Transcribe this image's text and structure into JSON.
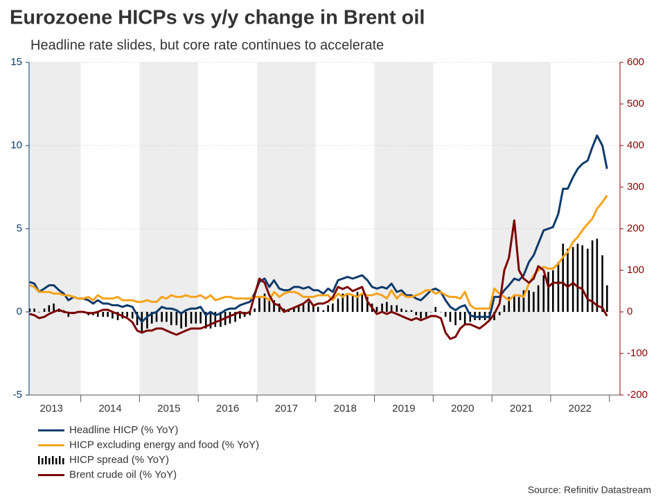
{
  "chart_data": {
    "type": "combo",
    "title": "Eurozoene HICPs vs y/y change in Brent oil",
    "subtitle": "Headline rate slides, but core rate continues to accelerate",
    "source": "Source: Refinitiv Datastream",
    "xlim": [
      2013.12,
      2023.18
    ],
    "xticks": [
      {
        "value": 2013.5,
        "label": "2013"
      },
      {
        "value": 2014.5,
        "label": "2014"
      },
      {
        "value": 2015.5,
        "label": "2015"
      },
      {
        "value": 2016.5,
        "label": "2016"
      },
      {
        "value": 2017.5,
        "label": "2017"
      },
      {
        "value": 2018.5,
        "label": "2018"
      },
      {
        "value": 2019.5,
        "label": "2019"
      },
      {
        "value": 2020.5,
        "label": "2020"
      },
      {
        "value": 2021.5,
        "label": "2021"
      },
      {
        "value": 2022.5,
        "label": "2022"
      }
    ],
    "ylim": [
      -5,
      15
    ],
    "yticks": [
      -5,
      0,
      5,
      10,
      15
    ],
    "y_color": "#0b3a6b",
    "y2lim": [
      -200,
      600
    ],
    "y2ticks": [
      -200,
      -100,
      0,
      100,
      200,
      300,
      400,
      500,
      600
    ],
    "y2_color": "#8b0000",
    "grid": true,
    "x": [
      2013.13,
      2013.21,
      2013.29,
      2013.38,
      2013.46,
      2013.54,
      2013.63,
      2013.71,
      2013.79,
      2013.88,
      2013.96,
      2014.04,
      2014.13,
      2014.21,
      2014.29,
      2014.38,
      2014.46,
      2014.54,
      2014.63,
      2014.71,
      2014.79,
      2014.88,
      2014.96,
      2015.04,
      2015.13,
      2015.21,
      2015.29,
      2015.38,
      2015.46,
      2015.54,
      2015.63,
      2015.71,
      2015.79,
      2015.88,
      2015.96,
      2016.04,
      2016.13,
      2016.21,
      2016.29,
      2016.38,
      2016.46,
      2016.54,
      2016.63,
      2016.71,
      2016.79,
      2016.88,
      2016.96,
      2017.04,
      2017.13,
      2017.21,
      2017.29,
      2017.38,
      2017.46,
      2017.54,
      2017.63,
      2017.71,
      2017.79,
      2017.88,
      2017.96,
      2018.04,
      2018.13,
      2018.21,
      2018.29,
      2018.38,
      2018.46,
      2018.54,
      2018.63,
      2018.71,
      2018.79,
      2018.88,
      2018.96,
      2019.04,
      2019.13,
      2019.21,
      2019.29,
      2019.38,
      2019.46,
      2019.54,
      2019.63,
      2019.71,
      2019.79,
      2019.88,
      2019.96,
      2020.04,
      2020.13,
      2020.21,
      2020.29,
      2020.38,
      2020.46,
      2020.54,
      2020.63,
      2020.71,
      2020.79,
      2020.88,
      2020.96,
      2021.04,
      2021.13,
      2021.21,
      2021.29,
      2021.38,
      2021.46,
      2021.54,
      2021.63,
      2021.71,
      2021.79,
      2021.88,
      2021.96,
      2022.04,
      2022.13,
      2022.21,
      2022.29,
      2022.38,
      2022.46,
      2022.54,
      2022.63,
      2022.71,
      2022.79,
      2022.88,
      2022.96
    ],
    "series": [
      {
        "name": "HICP spread (% YoY)",
        "type": "bar",
        "color": "#000000",
        "values": [
          0.2,
          0.2,
          0,
          0.2,
          0.4,
          0.5,
          0.2,
          0.1,
          -0.3,
          0,
          0,
          0,
          -0.2,
          -0.2,
          -0.3,
          -0.3,
          -0.3,
          -0.4,
          -0.5,
          -0.4,
          -0.3,
          -0.4,
          -0.8,
          -1.2,
          -1.0,
          -0.7,
          -0.6,
          -0.6,
          -0.6,
          -0.8,
          -0.8,
          -1.0,
          -0.9,
          -0.7,
          -0.7,
          -0.7,
          -1.0,
          -1.0,
          -0.9,
          -0.9,
          -0.8,
          -0.7,
          -0.6,
          -0.4,
          -0.3,
          -0.2,
          0.2,
          0.9,
          1.1,
          0.8,
          0.7,
          0.5,
          0.2,
          0.1,
          0.3,
          0.4,
          0.5,
          0.6,
          0.4,
          0.3,
          0.1,
          0.4,
          0.5,
          0.8,
          1.1,
          1.0,
          1.0,
          1.2,
          1.1,
          0.9,
          0.5,
          0.3,
          0.5,
          0.6,
          0.4,
          0.4,
          0.2,
          0.1,
          0.1,
          -0.2,
          -0.4,
          -0.3,
          0,
          0.3,
          0,
          -0.3,
          -0.6,
          -0.8,
          -0.5,
          -0.8,
          -0.6,
          -0.5,
          -0.5,
          -0.5,
          -0.5,
          -0.5,
          -0.2,
          0.4,
          0.9,
          1.0,
          0.9,
          1.3,
          1.3,
          1.2,
          1.6,
          2.2,
          2.4,
          2.5,
          3.0,
          4.1,
          3.8,
          3.9,
          4.1,
          4.0,
          3.8,
          4.3,
          4.4,
          3.4,
          1.6
        ]
      },
      {
        "name": "Headline HICP (% YoY)",
        "type": "line",
        "color": "#0b3a6b",
        "values": [
          1.8,
          1.7,
          1.2,
          1.4,
          1.6,
          1.6,
          1.3,
          1.1,
          0.7,
          0.9,
          0.8,
          0.8,
          0.7,
          0.5,
          0.7,
          0.5,
          0.5,
          0.4,
          0.4,
          0.3,
          0.4,
          0.3,
          -0.2,
          -0.6,
          -0.3,
          -0.1,
          0.0,
          0.3,
          0.2,
          0.2,
          0.1,
          -0.1,
          0.1,
          0.2,
          0.2,
          0.3,
          -0.2,
          0.0,
          -0.2,
          -0.1,
          0.1,
          0.2,
          0.2,
          0.4,
          0.5,
          0.6,
          1.1,
          1.8,
          2.0,
          1.5,
          1.9,
          1.4,
          1.3,
          1.3,
          1.5,
          1.5,
          1.4,
          1.5,
          1.3,
          1.3,
          1.1,
          1.4,
          1.2,
          1.9,
          2.0,
          2.1,
          2.0,
          2.1,
          2.2,
          1.9,
          1.5,
          1.4,
          1.5,
          1.4,
          1.7,
          1.2,
          1.3,
          1.0,
          1.0,
          0.8,
          0.7,
          1.0,
          1.3,
          1.4,
          1.2,
          0.7,
          0.3,
          0.1,
          0.3,
          0.4,
          -0.2,
          -0.3,
          -0.3,
          -0.3,
          -0.3,
          0.9,
          0.9,
          1.3,
          1.6,
          2.0,
          1.9,
          2.2,
          3.0,
          3.4,
          4.1,
          4.9,
          5.0,
          5.1,
          5.9,
          7.4,
          7.4,
          8.1,
          8.6,
          8.9,
          9.1,
          9.9,
          10.6,
          10.0,
          8.6
        ]
      },
      {
        "name": "HICP excluding energy and food (% YoY)",
        "type": "line",
        "color": "#f7a21b",
        "values": [
          1.6,
          1.5,
          1.2,
          1.2,
          1.2,
          1.1,
          1.1,
          1.0,
          1.0,
          0.9,
          0.8,
          0.8,
          0.9,
          0.7,
          1.0,
          0.8,
          0.8,
          0.8,
          0.9,
          0.7,
          0.7,
          0.7,
          0.6,
          0.6,
          0.7,
          0.6,
          0.6,
          0.9,
          0.8,
          1.0,
          0.9,
          0.9,
          1.0,
          0.9,
          0.9,
          1.0,
          0.8,
          1.0,
          0.7,
          0.8,
          0.9,
          0.9,
          0.8,
          0.8,
          0.8,
          0.8,
          0.9,
          0.9,
          0.9,
          0.7,
          1.2,
          0.9,
          1.1,
          1.2,
          1.2,
          1.1,
          0.9,
          0.9,
          0.9,
          1.0,
          1.0,
          1.0,
          0.7,
          1.1,
          0.9,
          1.1,
          1.0,
          0.9,
          1.1,
          1.0,
          1.0,
          1.1,
          1.0,
          0.8,
          1.3,
          0.8,
          1.1,
          0.9,
          0.9,
          1.0,
          1.1,
          1.3,
          1.3,
          1.1,
          1.2,
          1.0,
          0.9,
          0.9,
          0.8,
          1.2,
          0.4,
          0.2,
          0.2,
          0.2,
          0.2,
          1.4,
          1.1,
          0.9,
          0.7,
          1.0,
          1.0,
          0.9,
          1.7,
          2.2,
          2.5,
          2.7,
          2.6,
          2.6,
          2.9,
          3.3,
          3.6,
          4.2,
          4.5,
          4.9,
          5.3,
          5.6,
          6.2,
          6.6,
          7.0
        ]
      },
      {
        "name": "Brent crude oil (% YoY)",
        "type": "line",
        "axis": "y2",
        "color": "#7b0000",
        "values": [
          -5,
          -8,
          -15,
          -12,
          -5,
          0,
          5,
          0,
          -2,
          -3,
          0,
          0,
          -3,
          -3,
          0,
          5,
          5,
          0,
          -5,
          -10,
          -15,
          -25,
          -45,
          -50,
          -45,
          -45,
          -40,
          -40,
          -45,
          -50,
          -55,
          -50,
          -45,
          -40,
          -40,
          -40,
          -35,
          -30,
          -25,
          -20,
          -15,
          -10,
          -5,
          0,
          -5,
          0,
          40,
          80,
          70,
          40,
          20,
          15,
          0,
          5,
          10,
          15,
          20,
          30,
          15,
          20,
          20,
          25,
          35,
          60,
          55,
          60,
          50,
          55,
          60,
          25,
          10,
          -5,
          0,
          -5,
          0,
          -5,
          -10,
          -15,
          -20,
          -15,
          -20,
          -15,
          -10,
          -10,
          -15,
          -50,
          -65,
          -60,
          -40,
          -30,
          -30,
          -35,
          -40,
          -30,
          -20,
          -5,
          20,
          100,
          130,
          220,
          100,
          80,
          70,
          80,
          110,
          100,
          60,
          70,
          70,
          70,
          60,
          70,
          60,
          55,
          30,
          25,
          15,
          10,
          -10
        ]
      }
    ]
  }
}
